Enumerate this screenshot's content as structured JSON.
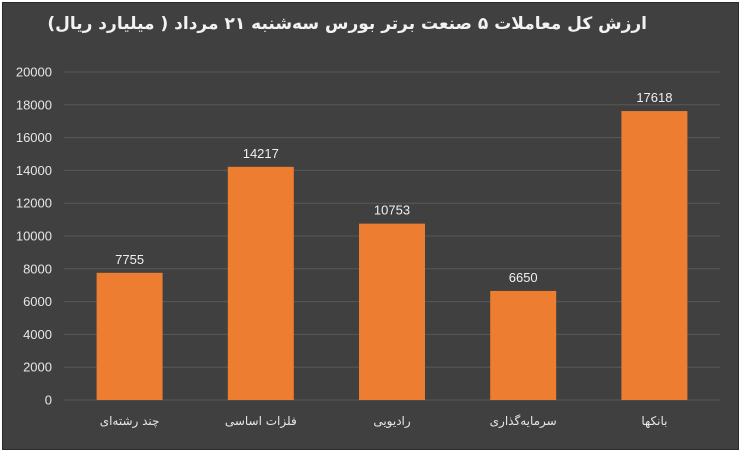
{
  "chart_data": {
    "type": "bar",
    "title": "ارزش کل معاملات ۵ صنعت برتر بورس سه‌شنبه ۲۱ مرداد ( میلیارد ریال)",
    "categories": [
      "چند رشته‌ای",
      "فلزات اساسی",
      "رادیویی",
      "سرمایه‌گذاری",
      "بانکها"
    ],
    "values": [
      7755,
      14217,
      10753,
      6650,
      17618
    ],
    "data_labels": [
      "7755",
      "14217",
      "10753",
      "6650",
      "17618"
    ],
    "ylim": [
      0,
      20000
    ],
    "yticks": [
      "0",
      "2000",
      "4000",
      "6000",
      "8000",
      "10000",
      "12000",
      "14000",
      "16000",
      "18000",
      "20000"
    ],
    "grid": true,
    "legend": "none",
    "bar_color": "#ED7D31",
    "grid_color": "#595959",
    "background": "#404040"
  }
}
